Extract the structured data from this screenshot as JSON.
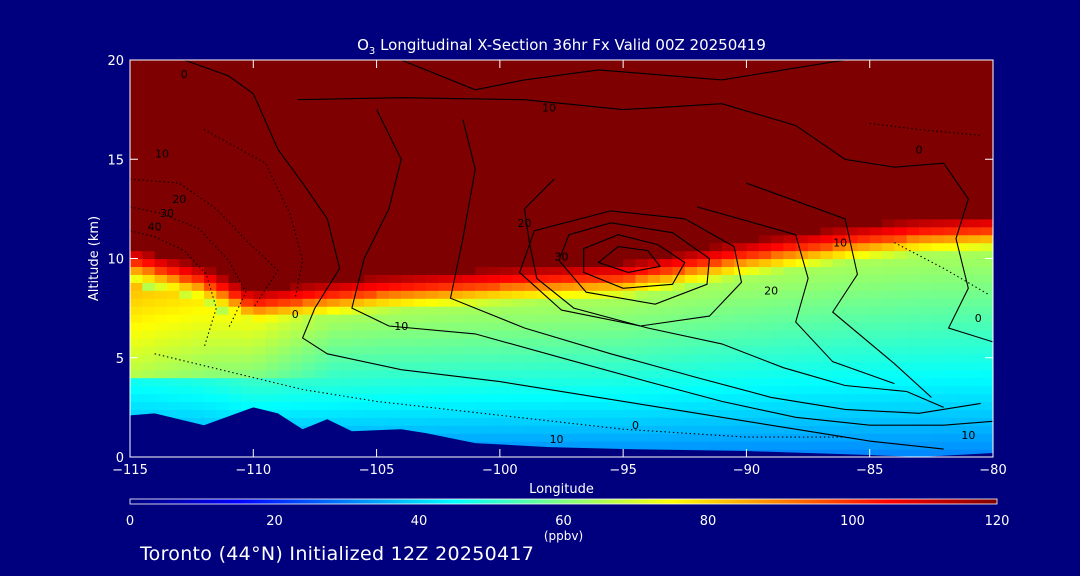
{
  "chart_data": {
    "type": "heatmap",
    "title_main": "O",
    "title_sub": "3",
    "title_rest": " Longitudinal X-Section 36hr  Fx Valid 00Z 20250419",
    "xlabel": "Longitude",
    "ylabel": "Altitude (km)",
    "xlim": [
      -115,
      -80
    ],
    "ylim": [
      0,
      20
    ],
    "x_ticks": [
      -115,
      -110,
      -105,
      -100,
      -95,
      -90,
      -85,
      -80
    ],
    "x_tick_labels": [
      "−115",
      "−110",
      "−105",
      "−100",
      "−95",
      "−90",
      "−85",
      "−80"
    ],
    "y_ticks": [
      0,
      5,
      10,
      15,
      20
    ],
    "y_tick_labels": [
      "0",
      "5",
      "10",
      "15",
      "20"
    ],
    "colorbar": {
      "vmin": 0,
      "vmax": 120,
      "ticks": [
        0,
        20,
        40,
        60,
        80,
        100,
        120
      ],
      "tick_labels": [
        "0",
        "20",
        "40",
        "60",
        "80",
        "100",
        "120"
      ],
      "unit": "(ppbv)",
      "colors": [
        "#00007f",
        "#0000ff",
        "#0080ff",
        "#00ffff",
        "#80ff80",
        "#ffff00",
        "#ff8000",
        "#ff0000",
        "#7f0000"
      ]
    },
    "ozone_field": {
      "tropopause_altitude_km": [
        [
          -115,
          10.0
        ],
        [
          -112,
          9.0
        ],
        [
          -110,
          7.8
        ],
        [
          -108,
          8.1
        ],
        [
          -105,
          8.5
        ],
        [
          -100,
          8.9
        ],
        [
          -95,
          9.2
        ],
        [
          -90,
          10.3
        ],
        [
          -86,
          11.0
        ],
        [
          -83,
          11.4
        ],
        [
          -80,
          11.6
        ]
      ],
      "terrain_km": [
        [
          -115,
          2.1
        ],
        [
          -114,
          2.2
        ],
        [
          -112,
          1.6
        ],
        [
          -110,
          2.5
        ],
        [
          -109,
          2.2
        ],
        [
          -108,
          1.4
        ],
        [
          -107,
          1.9
        ],
        [
          -106,
          1.3
        ],
        [
          -104,
          1.4
        ],
        [
          -103,
          1.2
        ],
        [
          -101,
          0.7
        ],
        [
          -98,
          0.5
        ],
        [
          -95,
          0.4
        ],
        [
          -90,
          0.3
        ],
        [
          -85,
          0.1
        ],
        [
          -83,
          0.0
        ],
        [
          -80,
          0.2
        ]
      ],
      "upper_troposphere_ppbv": 65,
      "mid_troposphere_ppbv": 45,
      "lower_troposphere_ppbv": 30,
      "stratosphere_ppbv": 120,
      "fold_ppbv": 95
    },
    "contour_labels": [
      {
        "text": "0",
        "lon": -112.8,
        "alt": 19.3
      },
      {
        "text": "10",
        "lon": -98.0,
        "alt": 17.6
      },
      {
        "text": "10",
        "lon": -113.7,
        "alt": 15.3
      },
      {
        "text": "20",
        "lon": -113.0,
        "alt": 13.0
      },
      {
        "text": "30",
        "lon": -113.5,
        "alt": 12.3
      },
      {
        "text": "40",
        "lon": -114.0,
        "alt": 11.6
      },
      {
        "text": "0",
        "lon": -83.0,
        "alt": 15.5
      },
      {
        "text": "20",
        "lon": -99.0,
        "alt": 11.8
      },
      {
        "text": "30",
        "lon": -97.5,
        "alt": 10.1
      },
      {
        "text": "10",
        "lon": -86.2,
        "alt": 10.8
      },
      {
        "text": "20",
        "lon": -89.0,
        "alt": 8.4
      },
      {
        "text": "0",
        "lon": -108.3,
        "alt": 7.2
      },
      {
        "text": "10",
        "lon": -104.0,
        "alt": 6.6
      },
      {
        "text": "0",
        "lon": -80.6,
        "alt": 7.0
      },
      {
        "text": "0",
        "lon": -94.5,
        "alt": 1.6
      },
      {
        "text": "10",
        "lon": -97.7,
        "alt": 0.9
      },
      {
        "text": "10",
        "lon": -81.0,
        "alt": 1.1
      }
    ]
  },
  "footer": {
    "text": "Toronto (44°N) Initialized 12Z 20250417"
  }
}
